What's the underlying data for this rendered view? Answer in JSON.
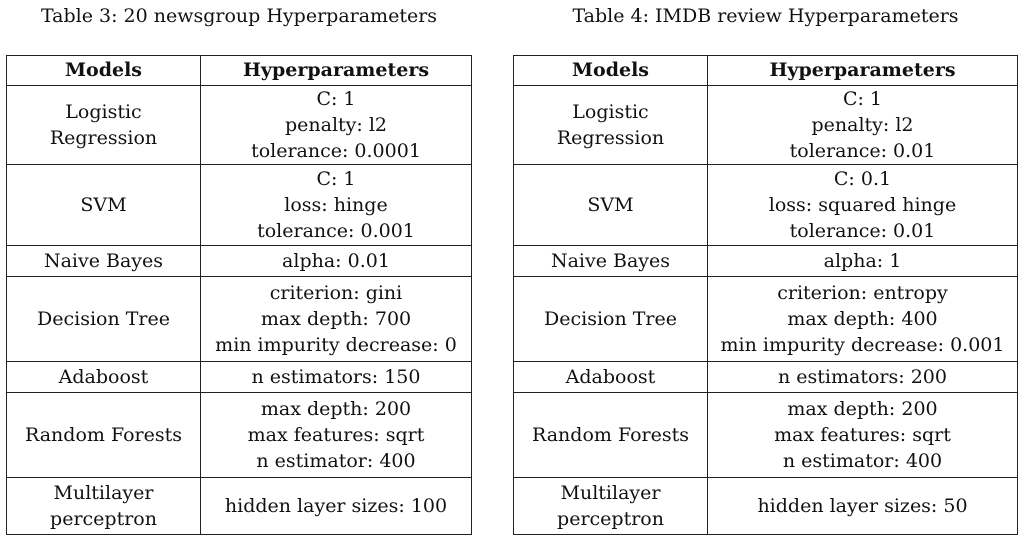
{
  "tables": [
    {
      "caption": "Table 3: 20 newsgroup Hyperparameters",
      "headers": [
        "Models",
        "Hyperparameters"
      ],
      "rows": [
        {
          "model": [
            "Logistic",
            "Regression"
          ],
          "params": [
            "C: 1",
            "penalty: l2",
            "tolerance: 0.0001"
          ]
        },
        {
          "model": [
            "SVM"
          ],
          "params": [
            "C: 1",
            "loss: hinge",
            "tolerance: 0.001"
          ]
        },
        {
          "model": [
            "Naive Bayes"
          ],
          "params": [
            "alpha: 0.01"
          ]
        },
        {
          "model": [
            "Decision Tree"
          ],
          "params": [
            "criterion: gini",
            "max depth: 700",
            "min impurity decrease: 0"
          ]
        },
        {
          "model": [
            "Adaboost"
          ],
          "params": [
            "n estimators: 150"
          ]
        },
        {
          "model": [
            "Random Forests"
          ],
          "params": [
            "max depth: 200",
            "max features: sqrt",
            "n estimator: 400"
          ]
        },
        {
          "model": [
            "Multilayer",
            "perceptron"
          ],
          "params": [
            "hidden layer sizes: 100"
          ]
        }
      ]
    },
    {
      "caption": "Table 4: IMDB review Hyperparameters",
      "headers": [
        "Models",
        "Hyperparameters"
      ],
      "rows": [
        {
          "model": [
            "Logistic",
            "Regression"
          ],
          "params": [
            "C: 1",
            "penalty: l2",
            "tolerance: 0.01"
          ]
        },
        {
          "model": [
            "SVM"
          ],
          "params": [
            "C: 0.1",
            "loss: squared hinge",
            "tolerance: 0.01"
          ]
        },
        {
          "model": [
            "Naive Bayes"
          ],
          "params": [
            "alpha: 1"
          ]
        },
        {
          "model": [
            "Decision Tree"
          ],
          "params": [
            "criterion: entropy",
            "max depth: 400",
            "min impurity decrease: 0.001"
          ]
        },
        {
          "model": [
            "Adaboost"
          ],
          "params": [
            "n estimators: 200"
          ]
        },
        {
          "model": [
            "Random Forests"
          ],
          "params": [
            "max depth: 200",
            "max features: sqrt",
            "n estimator: 400"
          ]
        },
        {
          "model": [
            "Multilayer",
            "perceptron"
          ],
          "params": [
            "hidden layer sizes: 50"
          ]
        }
      ]
    }
  ]
}
